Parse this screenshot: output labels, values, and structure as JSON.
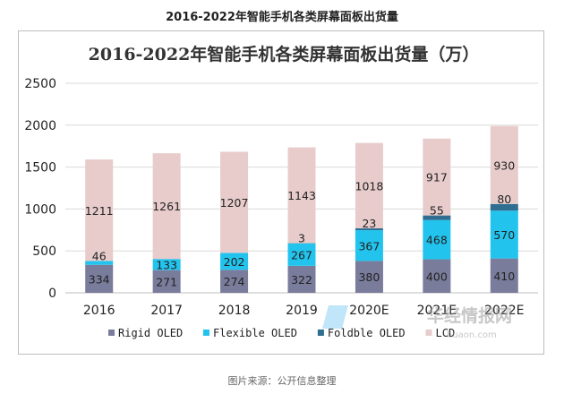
{
  "page": {
    "header_title": "2016-2022年智能手机各类屏幕面板出货量",
    "source": "图片来源：公开信息整理"
  },
  "watermark": {
    "name": "华经情报网",
    "url": "huaon.com"
  },
  "chart_data": {
    "type": "bar",
    "stacked": true,
    "title": "2016-2022年智能手机各类屏幕面板出货量（万）",
    "categories": [
      "2016",
      "2017",
      "2018",
      "2019",
      "2020E",
      "2021E",
      "2022E"
    ],
    "series": [
      {
        "name": "Rigid OLED",
        "color": "#7a7c9c",
        "values": [
          334,
          271,
          274,
          322,
          380,
          400,
          410
        ]
      },
      {
        "name": "Flexible OLED",
        "color": "#22c4ee",
        "values": [
          46,
          133,
          202,
          267,
          367,
          468,
          570
        ]
      },
      {
        "name": "Foldble OLED",
        "color": "#2f6e91",
        "values": [
          null,
          null,
          null,
          3,
          23,
          55,
          80
        ]
      },
      {
        "name": "LCD",
        "color": "#e8cccc",
        "values": [
          1211,
          1261,
          1207,
          1143,
          1018,
          917,
          930
        ]
      }
    ],
    "xlabel": "",
    "ylabel": "",
    "ylim": [
      0,
      2500
    ],
    "yticks": [
      0,
      500,
      1000,
      1500,
      2000,
      2500
    ],
    "grid": true,
    "legend": "bottom"
  }
}
